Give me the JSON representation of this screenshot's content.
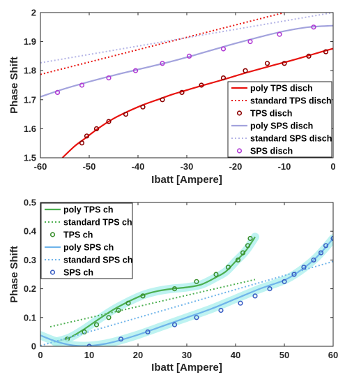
{
  "chart_data": [
    {
      "type": "line",
      "xlabel": "Ibatt [Ampere]",
      "ylabel": "Phase Shift",
      "xlim": [
        -60,
        0
      ],
      "ylim": [
        1.5,
        2.0
      ],
      "xticks": [
        -60,
        -50,
        -40,
        -30,
        -20,
        -10,
        0
      ],
      "yticks": [
        1.5,
        1.6,
        1.7,
        1.8,
        1.9,
        2.0
      ],
      "xtick_labels": [
        "-60",
        "-50",
        "-40",
        "-30",
        "-20",
        "-10",
        "0"
      ],
      "ytick_labels": [
        "1.5",
        "1.6",
        "1.7",
        "1.8",
        "1.9",
        "2"
      ],
      "grid": false,
      "legend_position": "bottom-right",
      "series": [
        {
          "name": "poly TPS disch",
          "style": "solid",
          "color": "#e8130f",
          "x": [
            -55.5,
            -53,
            -51,
            -48,
            -45,
            -42,
            -39,
            -36,
            -33,
            -30,
            -27,
            -24,
            -21,
            -18,
            -15,
            -12,
            -9,
            -6,
            -3,
            0
          ],
          "y": [
            1.5,
            1.54,
            1.565,
            1.603,
            1.635,
            1.66,
            1.682,
            1.7,
            1.718,
            1.733,
            1.748,
            1.762,
            1.777,
            1.792,
            1.806,
            1.82,
            1.833,
            1.847,
            1.862,
            1.876
          ]
        },
        {
          "name": "standard TPS disch",
          "style": "dotted",
          "color": "#e8130f",
          "x": [
            -60,
            -10
          ],
          "y": [
            1.787,
            2.0
          ]
        },
        {
          "name": "TPS disch",
          "style": "markers",
          "color": "#8b0000",
          "x": [
            -51.5,
            -50.5,
            -48.5,
            -46,
            -42.5,
            -39,
            -35,
            -31,
            -27,
            -22.5,
            -18,
            -13.5,
            -10,
            -5,
            -1.5
          ],
          "y": [
            1.551,
            1.575,
            1.6,
            1.625,
            1.65,
            1.675,
            1.7,
            1.725,
            1.75,
            1.775,
            1.8,
            1.825,
            1.825,
            1.85,
            1.865
          ]
        },
        {
          "name": "poly SPS disch",
          "style": "solid",
          "color": "#a3a3dd",
          "x": [
            -60,
            -55,
            -50,
            -45,
            -40,
            -35,
            -30,
            -25,
            -20,
            -15,
            -10,
            -5,
            0
          ],
          "y": [
            1.71,
            1.738,
            1.762,
            1.784,
            1.804,
            1.824,
            1.846,
            1.87,
            1.894,
            1.916,
            1.936,
            1.95,
            1.955
          ]
        },
        {
          "name": "standard SPS disch",
          "style": "dotted",
          "color": "#b4b4e6",
          "x": [
            -60,
            0
          ],
          "y": [
            1.827,
            2.0
          ]
        },
        {
          "name": "SPS disch",
          "style": "markers",
          "color": "#b03ad4",
          "x": [
            -56.5,
            -51.5,
            -46,
            -40.5,
            -35,
            -29.5,
            -22.5,
            -17,
            -11,
            -4
          ],
          "y": [
            1.725,
            1.75,
            1.775,
            1.8,
            1.825,
            1.85,
            1.875,
            1.9,
            1.925,
            1.95
          ]
        }
      ]
    },
    {
      "type": "line",
      "xlabel": "Ibatt [Ampere]",
      "ylabel": "Phase Shift",
      "xlim": [
        0,
        60
      ],
      "ylim": [
        0,
        0.5
      ],
      "xticks": [
        0,
        10,
        20,
        30,
        40,
        50,
        60
      ],
      "yticks": [
        0,
        0.1,
        0.2,
        0.3,
        0.4,
        0.5
      ],
      "xtick_labels": [
        "0",
        "10",
        "20",
        "30",
        "40",
        "50",
        "60"
      ],
      "ytick_labels": [
        "0",
        "0.1",
        "0.2",
        "0.3",
        "0.4",
        "0.5"
      ],
      "grid": false,
      "legend_position": "top-left",
      "series": [
        {
          "name": "poly TPS ch",
          "style": "solid",
          "color": "#4caf50",
          "band": true,
          "x": [
            3,
            6,
            9,
            12,
            15,
            18,
            21,
            24,
            27,
            30,
            33,
            36,
            38,
            40,
            42,
            44
          ],
          "y": [
            0.015,
            0.03,
            0.06,
            0.095,
            0.128,
            0.155,
            0.178,
            0.192,
            0.2,
            0.205,
            0.215,
            0.24,
            0.26,
            0.295,
            0.33,
            0.38
          ]
        },
        {
          "name": "standard TPS ch",
          "style": "dotted",
          "color": "#4caf50",
          "x": [
            2,
            44
          ],
          "y": [
            0.068,
            0.232
          ]
        },
        {
          "name": "TPS ch",
          "style": "markers",
          "color": "#3a8f2e",
          "x": [
            5.5,
            9,
            11.5,
            14,
            16,
            18,
            21,
            27.5,
            32,
            36,
            38.5,
            40.5,
            41.5,
            42.5,
            43
          ],
          "y": [
            0.025,
            0.05,
            0.075,
            0.1,
            0.125,
            0.15,
            0.175,
            0.2,
            0.225,
            0.25,
            0.275,
            0.3,
            0.325,
            0.35,
            0.375
          ]
        },
        {
          "name": "poly SPS ch",
          "style": "solid",
          "color": "#6fb4ea",
          "band": true,
          "x": [
            0,
            3,
            6,
            9,
            12,
            15,
            20,
            25,
            30,
            35,
            40,
            45,
            50,
            53,
            56,
            58,
            60
          ],
          "y": [
            0.038,
            0.018,
            0.005,
            0.001,
            0.005,
            0.015,
            0.04,
            0.07,
            0.1,
            0.13,
            0.165,
            0.2,
            0.23,
            0.26,
            0.3,
            0.335,
            0.375
          ]
        },
        {
          "name": "standard SPS ch",
          "style": "dotted",
          "color": "#6fb4ea",
          "x": [
            0,
            60
          ],
          "y": [
            0.002,
            0.295
          ]
        },
        {
          "name": "SPS ch",
          "style": "markers",
          "color": "#3b5fc4",
          "x": [
            10,
            16.5,
            22,
            27.5,
            32,
            37,
            41,
            44,
            47,
            50,
            52,
            54,
            56,
            57.5,
            58.5,
            60
          ],
          "y": [
            0.0,
            0.025,
            0.05,
            0.075,
            0.1,
            0.125,
            0.15,
            0.175,
            0.2,
            0.225,
            0.25,
            0.275,
            0.3,
            0.325,
            0.35,
            0.375
          ]
        }
      ]
    }
  ]
}
